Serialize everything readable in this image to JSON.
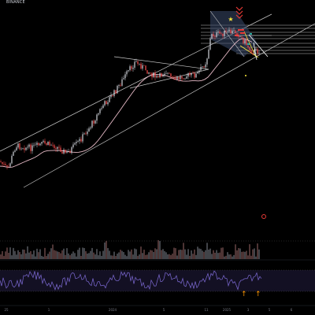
{
  "header": {
    "exchange": "BINANCE",
    "indicators": [
      "",
      "",
      "",
      "",
      "",
      "",
      ""
    ]
  },
  "x_axis": {
    "ticks": [
      "25",
      "",
      "1",
      "2024",
      "5",
      "",
      "",
      "11",
      "2025",
      "3",
      "5",
      "6"
    ]
  },
  "colors": {
    "background": "#000000",
    "candle_up": "#d1d4dc",
    "candle_down": "#ff4d4d",
    "ma_line": "#e8bcc8",
    "channel": "#c8c8c8",
    "rsi_line": "#7e6bd6",
    "volume": "#6b6e75",
    "arrow": "#ff9800",
    "alert": "#e53935"
  },
  "icons": {
    "alert": "alert-circle-icon",
    "arrows": "arrow-up-icon",
    "star": "star-icon",
    "chevrons": "chevron-down-icon"
  }
}
